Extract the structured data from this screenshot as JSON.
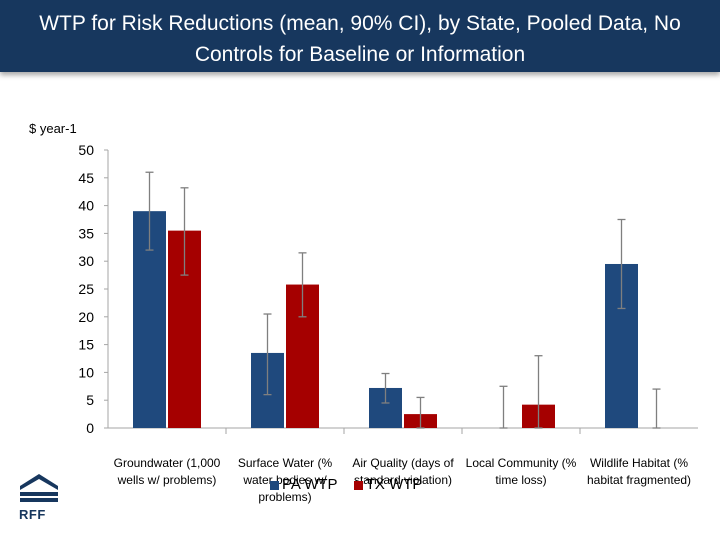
{
  "title": "WTP for Risk Reductions (mean, 90% CI), by State, Pooled Data, No Controls for Baseline or Information",
  "unit_label": "$ year-1",
  "logo_text": "RFF",
  "colors": {
    "title_bar": "#17375e",
    "pa": "#1f497d",
    "tx": "#a50000",
    "error_bar": "#7f7f7f",
    "axis": "#a6a6a6"
  },
  "chart_data": {
    "type": "bar",
    "categories": [
      "Groundwater (1,000 wells w/ problems)",
      "Surface Water (% water bodies w/ problems)",
      "Air Quality (days of standard violation)",
      "Local Community (% time loss)",
      "Wildlife Habitat (% habitat fragmented)"
    ],
    "series": [
      {
        "name": "PA WTP",
        "values": [
          39,
          13.5,
          7.2,
          0,
          29.5
        ],
        "ci_low": [
          32,
          6,
          4.5,
          0,
          21.5
        ],
        "ci_high": [
          46,
          20.5,
          9.8,
          7.5,
          37.5
        ]
      },
      {
        "name": "TX WTP",
        "values": [
          35.5,
          25.8,
          2.5,
          4.2,
          0
        ],
        "ci_low": [
          27.5,
          20,
          0,
          0,
          0
        ],
        "ci_high": [
          43.2,
          31.5,
          5.5,
          13,
          7
        ]
      }
    ],
    "ylim": [
      0,
      50
    ],
    "yticks": [
      0,
      5,
      10,
      15,
      20,
      25,
      30,
      35,
      40,
      45,
      50
    ],
    "ylabel": "$ year-1",
    "xlabel": "",
    "grid": false,
    "legend_position": "bottom"
  }
}
